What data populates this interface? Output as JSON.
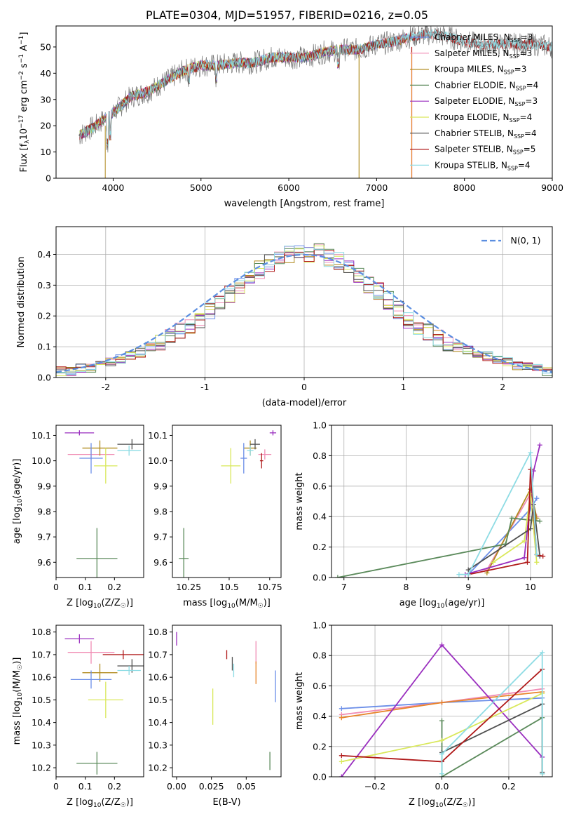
{
  "title": "PLATE=0304, MJD=51957, FIBERID=0216, z=0.05",
  "colors": {
    "Chabrier MILES": "#6b8ee8",
    "Salpeter MILES": "#f08cb4",
    "Kroupa MILES": "#b08a1e",
    "Chabrier ELODIE": "#5b8a5b",
    "Salpeter ELODIE": "#9a2fbf",
    "Kroupa ELODIE": "#d9e85a",
    "Chabrier STELIB": "#505050",
    "Salpeter STELIB": "#b01a1a",
    "Kroupa STELIB": "#8edce4",
    "orange": "#e8842a",
    "normal": "#5b8ee0"
  },
  "legend_models": [
    {
      "label": "Chabrier MILES, N",
      "n": "3"
    },
    {
      "label": "Salpeter MILES, N",
      "n": "3"
    },
    {
      "label": "Kroupa MILES, N",
      "n": "3"
    },
    {
      "label": "Chabrier ELODIE, N",
      "n": "4"
    },
    {
      "label": "Salpeter ELODIE, N",
      "n": "3"
    },
    {
      "label": "Kroupa ELODIE, N",
      "n": "4"
    },
    {
      "label": "Chabrier STELIB, N",
      "n": "4"
    },
    {
      "label": "Salpeter STELIB, N",
      "n": "5"
    },
    {
      "label": "Kroupa STELIB, N",
      "n": "4"
    }
  ],
  "chart_data": [
    {
      "id": "spectrum",
      "type": "line",
      "xlabel": "wavelength [Angstrom, rest frame]",
      "ylabel": "Flux [f_λ10^-17 erg cm^-2 s^-1 A^-1]",
      "xlim": [
        3350,
        9000
      ],
      "ylim": [
        0,
        58
      ],
      "xticks": [
        4000,
        5000,
        6000,
        7000,
        8000,
        9000
      ],
      "yticks": [
        0,
        10,
        20,
        30,
        40,
        50
      ],
      "x": [
        3600,
        3800,
        4000,
        4200,
        4400,
        4600,
        4800,
        5000,
        5200,
        5400,
        5600,
        5800,
        6000,
        6200,
        6400,
        6600,
        6800,
        7000,
        7200,
        7400,
        7600,
        7800,
        8000,
        8200,
        8400,
        8600,
        8800,
        9000
      ],
      "y": [
        16,
        20,
        25,
        31,
        33,
        37,
        41,
        43,
        43,
        44,
        44,
        46,
        46,
        46,
        48,
        49,
        49,
        51,
        52,
        54,
        55,
        54,
        52,
        51,
        51,
        51,
        51,
        50
      ],
      "legend": "top-right",
      "grid": false
    },
    {
      "id": "residuals",
      "type": "bar",
      "xlabel": "(data-model)/error",
      "ylabel": "Normed distribution",
      "xlim": [
        -2.5,
        2.5
      ],
      "ylim": [
        0,
        0.49
      ],
      "xticks": [
        -2,
        -1,
        0,
        1,
        2
      ],
      "yticks": [
        0.0,
        0.1,
        0.2,
        0.3,
        0.4
      ],
      "bin_width": 0.1,
      "bin_start": -2.5,
      "values": [
        0.02,
        0.02,
        0.03,
        0.03,
        0.04,
        0.05,
        0.06,
        0.07,
        0.08,
        0.1,
        0.11,
        0.13,
        0.15,
        0.16,
        0.19,
        0.22,
        0.24,
        0.27,
        0.3,
        0.33,
        0.35,
        0.37,
        0.38,
        0.4,
        0.41,
        0.4,
        0.41,
        0.39,
        0.38,
        0.36,
        0.33,
        0.3,
        0.28,
        0.25,
        0.22,
        0.19,
        0.17,
        0.15,
        0.13,
        0.11,
        0.1,
        0.09,
        0.08,
        0.07,
        0.06,
        0.05,
        0.04,
        0.04,
        0.03,
        0.02
      ],
      "legend_label": "N(0, 1)",
      "legend": "top-right",
      "grid": true
    },
    {
      "id": "age-vs-Z",
      "type": "scatter",
      "xlabel": "Z [log10(Z/Z☉)]",
      "ylabel": "age [log10(age/yr)]",
      "xlim": [
        0,
        0.3
      ],
      "ylim": [
        9.54,
        10.14
      ],
      "xticks": [
        0.0,
        0.1,
        0.2
      ],
      "yticks": [
        9.6,
        9.7,
        9.8,
        9.9,
        10.0,
        10.1
      ],
      "points": [
        {
          "model": "Salpeter ELODIE",
          "x": 0.08,
          "y": 10.11,
          "xerr": 0.05,
          "yerr": 0.01
        },
        {
          "model": "Salpeter MILES",
          "x": 0.12,
          "y": 10.025,
          "xerr": 0.08,
          "yerr": 0.02
        },
        {
          "model": "Kroupa MILES",
          "x": 0.15,
          "y": 10.05,
          "xerr": 0.06,
          "yerr": 0.03
        },
        {
          "model": "Chabrier MILES",
          "x": 0.12,
          "y": 10.01,
          "xerr": 0.04,
          "yerr": 0.06
        },
        {
          "model": "Kroupa ELODIE",
          "x": 0.17,
          "y": 9.98,
          "xerr": 0.04,
          "yerr": 0.07
        },
        {
          "model": "Chabrier STELIB",
          "x": 0.26,
          "y": 10.065,
          "xerr": 0.05,
          "yerr": 0.02
        },
        {
          "model": "Kroupa STELIB",
          "x": 0.25,
          "y": 10.04,
          "xerr": 0.04,
          "yerr": 0.02
        },
        {
          "model": "Chabrier ELODIE",
          "x": 0.14,
          "y": 9.615,
          "xerr": 0.07,
          "yerr": 0.12
        }
      ]
    },
    {
      "id": "age-vs-mass",
      "type": "scatter",
      "xlabel": "mass [log10(M/M☉)]",
      "ylabel": "",
      "xlim": [
        10.15,
        10.82
      ],
      "ylim": [
        9.54,
        10.14
      ],
      "xticks": [
        10.25,
        10.5,
        10.75
      ],
      "yticks": [
        9.6,
        9.7,
        9.8,
        9.9,
        10.0,
        10.1
      ],
      "points": [
        {
          "model": "Salpeter ELODIE",
          "x": 10.77,
          "y": 10.11,
          "xerr": 0.02,
          "yerr": 0.01
        },
        {
          "model": "Salpeter MILES",
          "x": 10.72,
          "y": 10.025,
          "xerr": 0.04,
          "yerr": 0.02
        },
        {
          "model": "Kroupa MILES",
          "x": 10.63,
          "y": 10.05,
          "xerr": 0.04,
          "yerr": 0.03
        },
        {
          "model": "Chabrier MILES",
          "x": 10.59,
          "y": 10.01,
          "xerr": 0.02,
          "yerr": 0.06
        },
        {
          "model": "Kroupa ELODIE",
          "x": 10.51,
          "y": 9.98,
          "xerr": 0.06,
          "yerr": 0.07
        },
        {
          "model": "Chabrier STELIB",
          "x": 10.66,
          "y": 10.065,
          "xerr": 0.03,
          "yerr": 0.02
        },
        {
          "model": "Salpeter STELIB",
          "x": 10.7,
          "y": 10.0,
          "xerr": 0.01,
          "yerr": 0.03
        },
        {
          "model": "Kroupa STELIB",
          "x": 10.63,
          "y": 10.04,
          "xerr": 0.02,
          "yerr": 0.02
        },
        {
          "model": "Chabrier ELODIE",
          "x": 10.22,
          "y": 9.615,
          "xerr": 0.03,
          "yerr": 0.12
        }
      ]
    },
    {
      "id": "weight-vs-age",
      "type": "line",
      "xlabel": "age [log10(age/yr)]",
      "ylabel": "mass weight",
      "xlim": [
        6.8,
        10.35
      ],
      "ylim": [
        0,
        1.0
      ],
      "xticks": [
        7,
        8,
        9,
        10
      ],
      "yticks": [
        0.0,
        0.2,
        0.4,
        0.6,
        0.8,
        1.0
      ],
      "grid": true,
      "series": [
        {
          "model": "Chabrier MILES",
          "x": [
            9.0,
            10.0,
            10.1
          ],
          "y": [
            0.02,
            0.45,
            0.52
          ]
        },
        {
          "model": "Salpeter MILES",
          "x": [
            9.3,
            10.0,
            10.1
          ],
          "y": [
            0.05,
            0.55,
            0.4
          ]
        },
        {
          "model": "Kroupa MILES",
          "x": [
            9.3,
            10.0,
            10.1
          ],
          "y": [
            0.03,
            0.58,
            0.39
          ]
        },
        {
          "model": "Chabrier ELODIE",
          "x": [
            6.9,
            9.6,
            9.7,
            10.15
          ],
          "y": [
            0.0,
            0.22,
            0.39,
            0.37
          ]
        },
        {
          "model": "Salpeter ELODIE",
          "x": [
            8.95,
            9.9,
            10.05,
            10.15
          ],
          "y": [
            0.02,
            0.13,
            0.7,
            0.87
          ]
        },
        {
          "model": "Kroupa ELODIE",
          "x": [
            9.4,
            9.9,
            10.0,
            10.1
          ],
          "y": [
            0.1,
            0.24,
            0.55,
            0.1
          ]
        },
        {
          "model": "Chabrier STELIB",
          "x": [
            9.0,
            10.0,
            10.05,
            10.15
          ],
          "y": [
            0.05,
            0.32,
            0.48,
            0.14
          ]
        },
        {
          "model": "Salpeter STELIB",
          "x": [
            9.0,
            9.95,
            10.0,
            10.1,
            10.2
          ],
          "y": [
            0.02,
            0.1,
            0.71,
            0.15,
            0.14
          ]
        },
        {
          "model": "Kroupa STELIB",
          "x": [
            8.85,
            9.0,
            10.0,
            10.1
          ],
          "y": [
            0.02,
            0.02,
            0.82,
            0.15
          ]
        }
      ]
    },
    {
      "id": "mass-vs-Z",
      "type": "scatter",
      "xlabel": "Z [log10(Z/Z☉)]",
      "ylabel": "mass [log10(M/M☉)]",
      "xlim": [
        0,
        0.3
      ],
      "ylim": [
        10.16,
        10.83
      ],
      "xticks": [
        0.0,
        0.1,
        0.2
      ],
      "yticks": [
        10.2,
        10.3,
        10.4,
        10.5,
        10.6,
        10.7,
        10.8
      ],
      "points": [
        {
          "model": "Salpeter ELODIE",
          "x": 0.08,
          "y": 10.77,
          "xerr": 0.05,
          "yerr": 0.02
        },
        {
          "model": "Salpeter MILES",
          "x": 0.12,
          "y": 10.71,
          "xerr": 0.08,
          "yerr": 0.05
        },
        {
          "model": "Salpeter STELIB",
          "x": 0.23,
          "y": 10.7,
          "xerr": 0.07,
          "yerr": 0.02
        },
        {
          "model": "Chabrier STELIB",
          "x": 0.26,
          "y": 10.65,
          "xerr": 0.05,
          "yerr": 0.03
        },
        {
          "model": "Kroupa STELIB",
          "x": 0.25,
          "y": 10.63,
          "xerr": 0.04,
          "yerr": 0.02
        },
        {
          "model": "Kroupa MILES",
          "x": 0.15,
          "y": 10.62,
          "xerr": 0.06,
          "yerr": 0.04
        },
        {
          "model": "Chabrier MILES",
          "x": 0.12,
          "y": 10.59,
          "xerr": 0.07,
          "yerr": 0.04
        },
        {
          "model": "Kroupa ELODIE",
          "x": 0.17,
          "y": 10.5,
          "xerr": 0.06,
          "yerr": 0.08
        },
        {
          "model": "Chabrier ELODIE",
          "x": 0.14,
          "y": 10.22,
          "xerr": 0.07,
          "yerr": 0.05
        }
      ]
    },
    {
      "id": "mass-vs-ebv",
      "type": "scatter",
      "xlabel": "E(B-V)",
      "ylabel": "",
      "xlim": [
        -0.003,
        0.075
      ],
      "ylim": [
        10.16,
        10.83
      ],
      "xticks": [
        0.0,
        0.025,
        0.05
      ],
      "tick_labels": [
        "0.00",
        "0.025",
        "0.05"
      ],
      "yticks": [
        10.2,
        10.3,
        10.4,
        10.5,
        10.6,
        10.7,
        10.8
      ],
      "points": [
        {
          "model": "Salpeter ELODIE",
          "x": 0.0,
          "y": 10.77,
          "yerr": 0.03
        },
        {
          "model": "Salpeter STELIB",
          "x": 0.036,
          "y": 10.7,
          "yerr": 0.02
        },
        {
          "model": "Chabrier STELIB",
          "x": 0.04,
          "y": 10.66,
          "yerr": 0.03
        },
        {
          "model": "Kroupa STELIB",
          "x": 0.041,
          "y": 10.63,
          "yerr": 0.03
        },
        {
          "model": "Salpeter MILES",
          "x": 0.057,
          "y": 10.71,
          "yerr": 0.05
        },
        {
          "model": "orange",
          "x": 0.057,
          "y": 10.62,
          "yerr": 0.05
        },
        {
          "model": "Kroupa ELODIE",
          "x": 0.026,
          "y": 10.47,
          "yerr": 0.08
        },
        {
          "model": "Chabrier MILES",
          "x": 0.071,
          "y": 10.56,
          "yerr": 0.07
        },
        {
          "model": "Chabrier ELODIE",
          "x": 0.067,
          "y": 10.23,
          "yerr": 0.04
        }
      ]
    },
    {
      "id": "weight-vs-Z",
      "type": "line",
      "xlabel": "Z [log10(Z/Z☉)]",
      "ylabel": "mass weight",
      "xlim": [
        -0.33,
        0.33
      ],
      "ylim": [
        0,
        1.0
      ],
      "xticks": [
        -0.2,
        0.0,
        0.2
      ],
      "tick_labels": [
        "−0.2",
        "0.0",
        "0.2"
      ],
      "yticks": [
        0.0,
        0.2,
        0.4,
        0.6,
        0.8,
        1.0
      ],
      "grid": true,
      "series": [
        {
          "model": "Chabrier MILES",
          "x": [
            -0.3,
            0.0,
            0.3
          ],
          "y": [
            0.45,
            0.49,
            0.52
          ]
        },
        {
          "model": "Salpeter MILES",
          "x": [
            -0.3,
            0.0,
            0.3
          ],
          "y": [
            0.41,
            0.49,
            0.58
          ]
        },
        {
          "model": "orange",
          "x": [
            -0.3,
            0.0,
            0.3
          ],
          "y": [
            0.39,
            0.49,
            0.56
          ]
        },
        {
          "model": "Chabrier ELODIE",
          "x": [
            0.0,
            0.0,
            0.3,
            0.3
          ],
          "y": [
            0.37,
            0.0,
            0.39,
            0.02
          ]
        },
        {
          "model": "Salpeter ELODIE",
          "x": [
            -0.3,
            0.0,
            0.3
          ],
          "y": [
            0.0,
            0.87,
            0.13
          ]
        },
        {
          "model": "Kroupa ELODIE",
          "x": [
            -0.3,
            0.0,
            0.3
          ],
          "y": [
            0.1,
            0.24,
            0.55
          ]
        },
        {
          "model": "Chabrier STELIB",
          "x": [
            0.0,
            0.3,
            0.3
          ],
          "y": [
            0.16,
            0.48,
            0.03
          ]
        },
        {
          "model": "Salpeter STELIB",
          "x": [
            -0.3,
            0.0,
            0.3
          ],
          "y": [
            0.14,
            0.1,
            0.71
          ]
        },
        {
          "model": "Kroupa STELIB",
          "x": [
            0.0,
            0.0,
            0.3,
            0.3
          ],
          "y": [
            0.02,
            0.15,
            0.82,
            0.02
          ]
        }
      ]
    }
  ]
}
